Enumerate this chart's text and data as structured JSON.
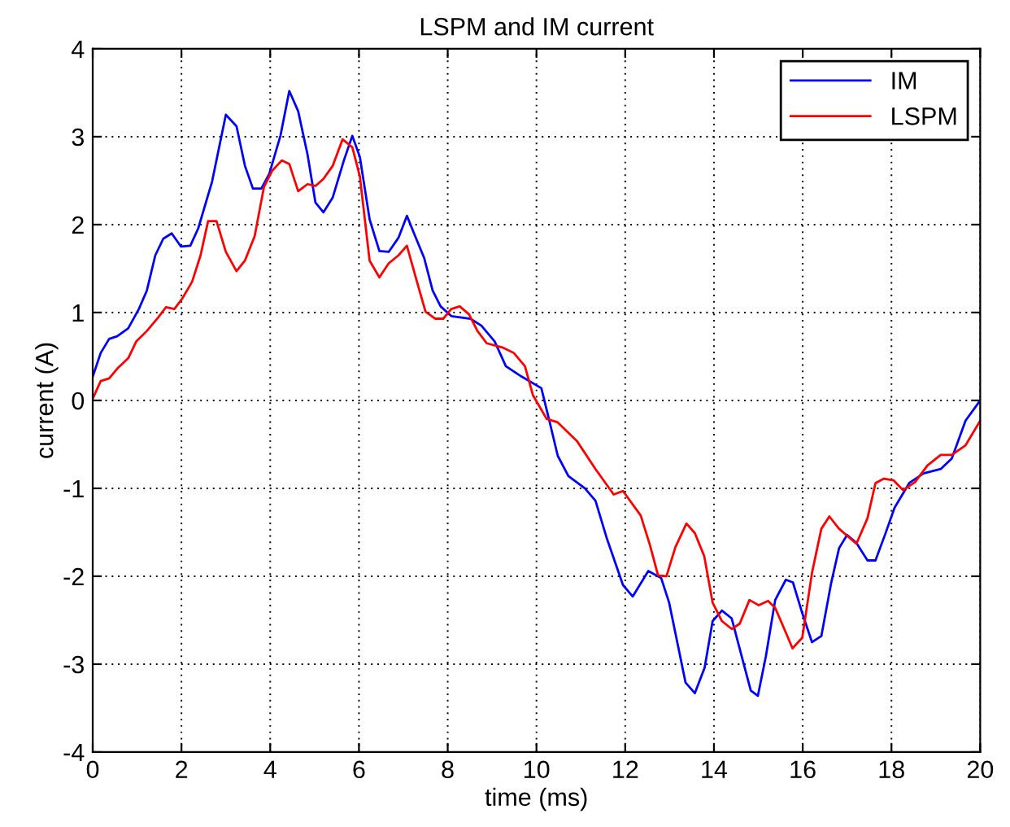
{
  "chart_data": {
    "type": "line",
    "title": "LSPM and IM current",
    "xlabel": "time (ms)",
    "ylabel": "current (A)",
    "xlim": [
      0,
      20
    ],
    "ylim": [
      -4,
      4
    ],
    "xticks": [
      0,
      2,
      4,
      6,
      8,
      10,
      12,
      14,
      16,
      18,
      20
    ],
    "yticks": [
      -4,
      -3,
      -2,
      -1,
      0,
      1,
      2,
      3,
      4
    ],
    "grid": true,
    "legend": "top right",
    "line_style": "solid",
    "marker": "none",
    "series": [
      {
        "name": "IM",
        "color": "#0000ff",
        "x": [
          0,
          0.18,
          0.37,
          0.55,
          0.8,
          1.04,
          1.22,
          1.41,
          1.59,
          1.78,
          1.99,
          2.2,
          2.38,
          2.69,
          3.0,
          3.24,
          3.43,
          3.61,
          3.8,
          3.98,
          4.23,
          4.43,
          4.63,
          4.84,
          5.02,
          5.2,
          5.41,
          5.66,
          5.85,
          6.02,
          6.24,
          6.46,
          6.67,
          6.89,
          7.08,
          7.29,
          7.47,
          7.66,
          7.84,
          8.08,
          8.51,
          8.76,
          9.06,
          9.31,
          9.67,
          10.11,
          10.29,
          10.48,
          10.72,
          11.09,
          11.33,
          11.58,
          11.95,
          12.17,
          12.52,
          12.81,
          12.99,
          13.36,
          13.57,
          13.79,
          13.97,
          14.18,
          14.4,
          14.64,
          14.83,
          14.99,
          15.17,
          15.38,
          15.62,
          15.78,
          15.99,
          16.21,
          16.42,
          16.64,
          16.82,
          17.0,
          17.21,
          17.46,
          17.64,
          17.86,
          18.07,
          18.4,
          18.72,
          19.11,
          19.36,
          19.67,
          20
        ],
        "values": [
          0.27,
          0.54,
          0.7,
          0.73,
          0.82,
          1.04,
          1.25,
          1.65,
          1.84,
          1.9,
          1.75,
          1.76,
          1.96,
          2.49,
          3.25,
          3.12,
          2.67,
          2.41,
          2.41,
          2.58,
          3.01,
          3.52,
          3.29,
          2.8,
          2.25,
          2.14,
          2.31,
          2.73,
          3.01,
          2.77,
          2.06,
          1.7,
          1.69,
          1.85,
          2.1,
          1.84,
          1.62,
          1.25,
          1.07,
          0.96,
          0.93,
          0.85,
          0.67,
          0.39,
          0.27,
          0.14,
          -0.23,
          -0.63,
          -0.86,
          -1.0,
          -1.14,
          -1.56,
          -2.1,
          -2.23,
          -1.94,
          -2.02,
          -2.3,
          -3.21,
          -3.33,
          -3.04,
          -2.51,
          -2.39,
          -2.48,
          -2.94,
          -3.3,
          -3.36,
          -2.91,
          -2.27,
          -2.04,
          -2.07,
          -2.42,
          -2.75,
          -2.68,
          -2.08,
          -1.68,
          -1.53,
          -1.62,
          -1.82,
          -1.82,
          -1.52,
          -1.22,
          -0.94,
          -0.83,
          -0.78,
          -0.66,
          -0.23,
          0.0
        ]
      },
      {
        "name": "LSPM",
        "color": "#ff0000",
        "x": [
          0,
          0.18,
          0.37,
          0.55,
          0.8,
          0.98,
          1.22,
          1.47,
          1.65,
          1.84,
          2.02,
          2.24,
          2.43,
          2.6,
          2.79,
          3.0,
          3.24,
          3.43,
          3.65,
          3.86,
          4.04,
          4.26,
          4.43,
          4.63,
          4.84,
          5.02,
          5.2,
          5.41,
          5.63,
          5.85,
          6.02,
          6.24,
          6.46,
          6.67,
          6.89,
          7.08,
          7.29,
          7.5,
          7.72,
          7.9,
          8.08,
          8.27,
          8.48,
          8.67,
          8.88,
          9.25,
          9.49,
          9.74,
          9.92,
          10.23,
          10.48,
          10.91,
          11.33,
          11.74,
          11.95,
          12.35,
          12.56,
          12.74,
          12.93,
          13.13,
          13.38,
          13.57,
          13.78,
          13.97,
          14.18,
          14.4,
          14.58,
          14.8,
          15.01,
          15.22,
          15.38,
          15.56,
          15.77,
          15.99,
          16.21,
          16.42,
          16.6,
          16.82,
          17.21,
          17.46,
          17.64,
          17.83,
          18.05,
          18.26,
          18.53,
          18.81,
          19.11,
          19.36,
          19.67,
          20
        ],
        "values": [
          0.02,
          0.22,
          0.25,
          0.36,
          0.48,
          0.67,
          0.79,
          0.94,
          1.06,
          1.04,
          1.16,
          1.35,
          1.65,
          2.04,
          2.04,
          1.69,
          1.47,
          1.59,
          1.87,
          2.43,
          2.61,
          2.73,
          2.69,
          2.38,
          2.46,
          2.44,
          2.52,
          2.67,
          2.97,
          2.88,
          2.55,
          1.59,
          1.4,
          1.56,
          1.65,
          1.76,
          1.38,
          1.01,
          0.93,
          0.93,
          1.04,
          1.07,
          0.98,
          0.79,
          0.65,
          0.6,
          0.54,
          0.39,
          0.06,
          -0.21,
          -0.25,
          -0.46,
          -0.78,
          -1.07,
          -1.03,
          -1.31,
          -1.65,
          -1.99,
          -2.0,
          -1.67,
          -1.4,
          -1.51,
          -1.77,
          -2.3,
          -2.51,
          -2.6,
          -2.54,
          -2.27,
          -2.33,
          -2.28,
          -2.36,
          -2.57,
          -2.82,
          -2.7,
          -1.96,
          -1.46,
          -1.32,
          -1.46,
          -1.63,
          -1.34,
          -0.94,
          -0.89,
          -0.91,
          -1.02,
          -0.93,
          -0.74,
          -0.62,
          -0.62,
          -0.51,
          -0.23
        ]
      }
    ]
  }
}
